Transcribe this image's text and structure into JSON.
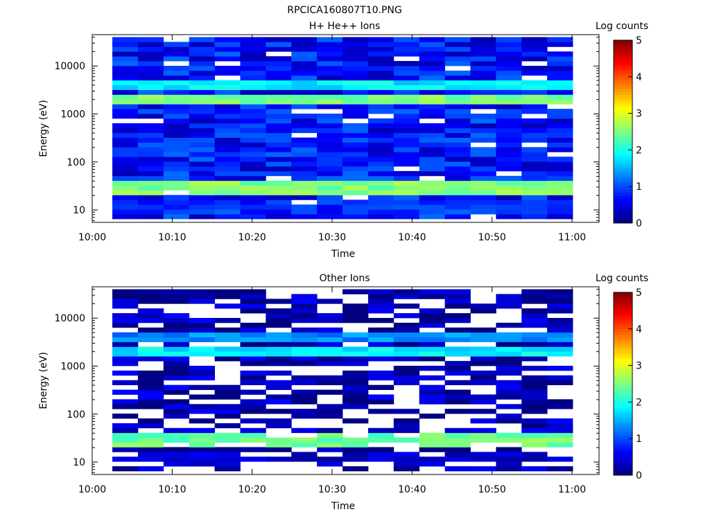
{
  "figure": {
    "title": "RPCICA160807T10.PNG"
  },
  "chart_data": [
    {
      "type": "heatmap",
      "title": "H+ He++ Ions",
      "xlabel": "Time",
      "ylabel": "Energy (eV)",
      "y_scale": "log",
      "x_ticks": [
        "10:00",
        "10:10",
        "10:20",
        "10:30",
        "10:40",
        "10:50",
        "11:00"
      ],
      "y_ticks": [
        "10",
        "100",
        "1000",
        "10000"
      ],
      "colorbar": {
        "label": "Log counts",
        "ticks": [
          "0",
          "1",
          "2",
          "3",
          "4",
          "5"
        ],
        "range": [
          0,
          5
        ]
      },
      "bands": [
        {
          "energy_eV": 12,
          "log_counts": 0.8
        },
        {
          "energy_eV": 30,
          "log_counts": 2.5
        },
        {
          "energy_eV": 1900,
          "log_counts": 2.5
        },
        {
          "energy_eV": 4000,
          "log_counts": 1.8
        }
      ],
      "background_log_counts": 0.7
    },
    {
      "type": "heatmap",
      "title": "Other Ions",
      "xlabel": "Time",
      "ylabel": "Energy (eV)",
      "y_scale": "log",
      "x_ticks": [
        "10:00",
        "10:10",
        "10:20",
        "10:30",
        "10:40",
        "10:50",
        "11:00"
      ],
      "y_ticks": [
        "10",
        "100",
        "1000",
        "10000"
      ],
      "colorbar": {
        "label": "Log counts",
        "ticks": [
          "0",
          "1",
          "2",
          "3",
          "4",
          "5"
        ],
        "range": [
          0,
          5
        ]
      },
      "bands": [
        {
          "energy_eV": 12,
          "log_counts": 0.3
        },
        {
          "energy_eV": 30,
          "log_counts": 2.4
        },
        {
          "energy_eV": 1900,
          "log_counts": 1.8
        },
        {
          "energy_eV": 4000,
          "log_counts": 1.3
        }
      ],
      "background_log_counts": 0.2
    }
  ]
}
